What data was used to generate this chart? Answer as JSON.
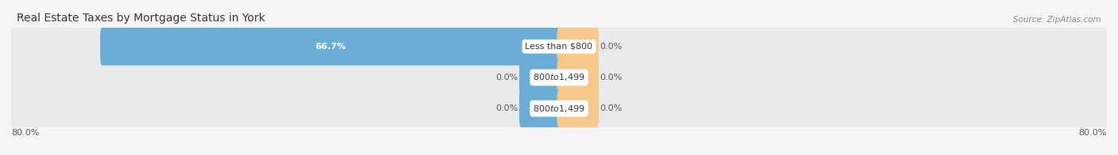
{
  "title": "Real Estate Taxes by Mortgage Status in York",
  "source": "Source: ZipAtlas.com",
  "categories": [
    "Less than $800",
    "$800 to $1,499",
    "$800 to $1,499"
  ],
  "without_mortgage": [
    66.7,
    0.0,
    0.0
  ],
  "with_mortgage": [
    0.0,
    0.0,
    0.0
  ],
  "xlim_left": -80.0,
  "xlim_right": 80.0,
  "color_without": "#6aaed6",
  "color_with": "#f5c98a",
  "color_bg_row": "#e8eaec",
  "color_bg_fig": "#f5f5f5",
  "color_title": "#333333",
  "color_source": "#888888",
  "color_label_dark": "#555555",
  "color_label_white": "#ffffff",
  "bar_height": 0.62,
  "min_bar_display": 5.0,
  "zero_bar_display": 5.5,
  "title_fontsize": 10,
  "label_fontsize": 8,
  "source_fontsize": 7.5,
  "tick_fontsize": 8,
  "legend_fontsize": 8,
  "x_left_label": "80.0%",
  "x_right_label": "80.0%"
}
